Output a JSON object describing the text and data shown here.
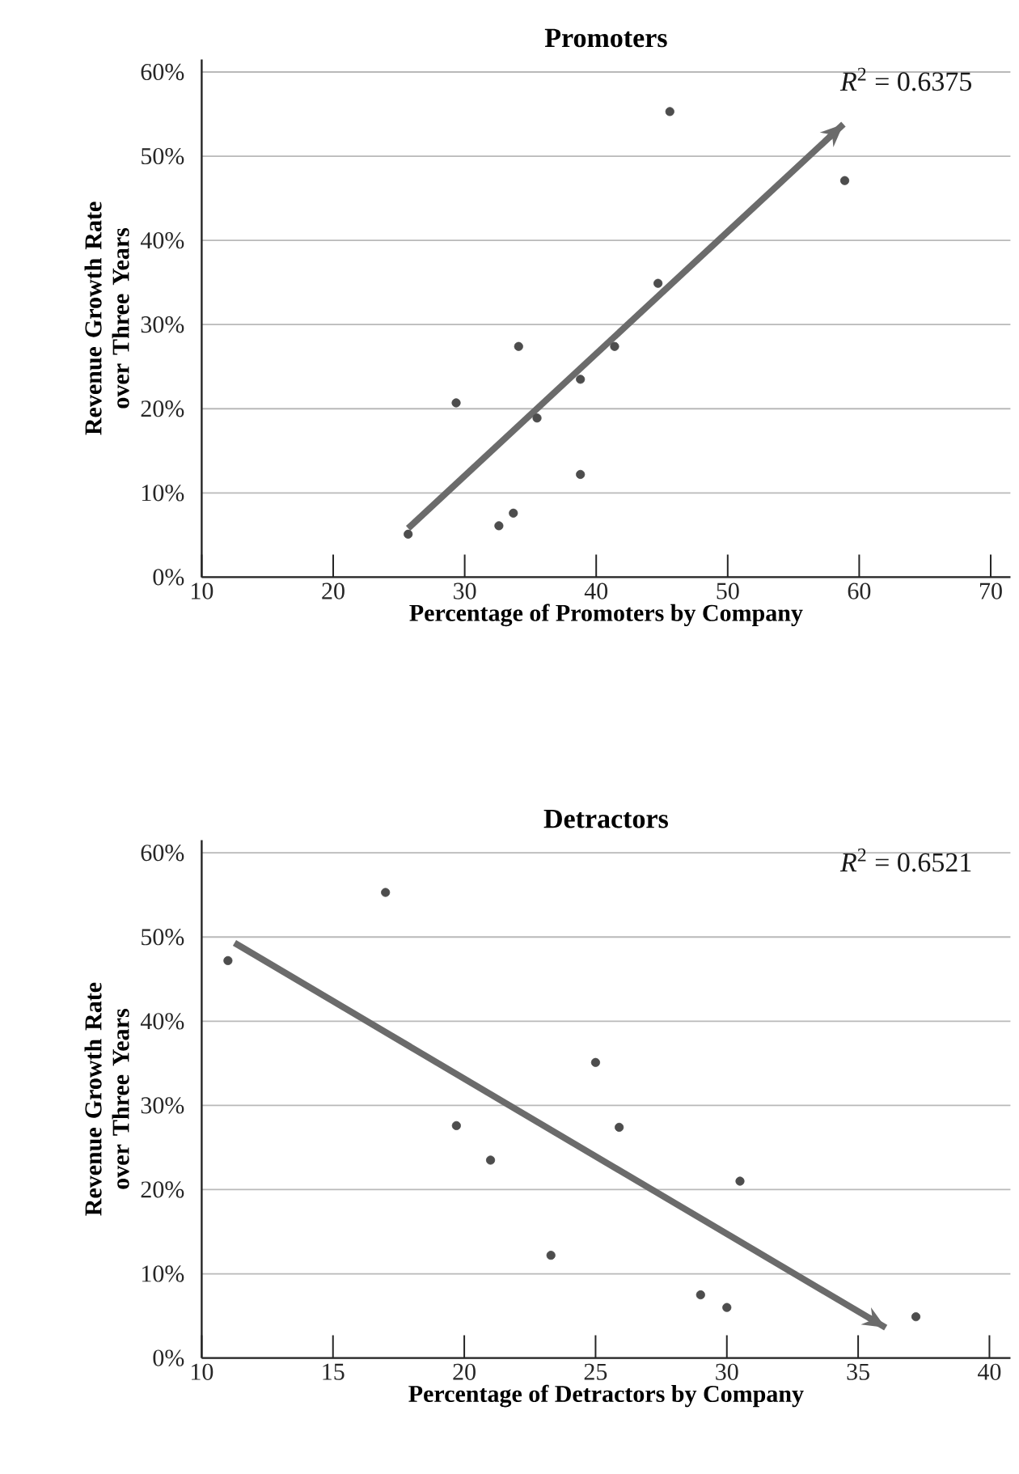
{
  "chart_data": [
    {
      "type": "scatter",
      "title": "Promoters",
      "xlabel": "Percentage of Promoters by Company",
      "ylabel": "Revenue Growth Rate over Three Years",
      "xlim": [
        10,
        71.5
      ],
      "xticks": [
        10,
        20,
        30,
        40,
        50,
        60,
        70
      ],
      "ylim": [
        0,
        61.5
      ],
      "yticks": [
        {
          "value": 0,
          "label": "0%"
        },
        {
          "value": 10,
          "label": "10%"
        },
        {
          "value": 20,
          "label": "20%"
        },
        {
          "value": 30,
          "label": "30%"
        },
        {
          "value": 40,
          "label": "40%"
        },
        {
          "value": 50,
          "label": "50%"
        },
        {
          "value": 60,
          "label": "60%"
        }
      ],
      "grid": "y",
      "annotations": [
        "*R*$^{2}$ = 0.6375"
      ],
      "series": [
        {
          "type": "scatter",
          "marker": "circle",
          "color": "#4d4d4d",
          "x": [
            25.7,
            29.35,
            34.1,
            35.5,
            32.6,
            33.7,
            38.8,
            38.8,
            41.4,
            44.7,
            45.6,
            58.9
          ],
          "values": [
            5.1,
            20.7,
            27.4,
            18.9,
            6.1,
            7.6,
            23.5,
            12.2,
            27.4,
            34.9,
            55.3,
            47.1
          ]
        },
        {
          "type": "line",
          "marker": "none",
          "color": "#6b6b6b",
          "x": [
            25.7,
            58.8
          ],
          "values": [
            5.8,
            53.8
          ]
        }
      ]
    },
    {
      "type": "scatter",
      "title": "Detractors",
      "xlabel": "Percentage of Detractors by Company",
      "ylabel": "Revenue Growth Rate over Three Years",
      "xlim": [
        10,
        40.8
      ],
      "xticks": [
        10,
        15,
        20,
        25,
        30,
        35,
        40
      ],
      "ylim": [
        0,
        61.5
      ],
      "yticks": [
        {
          "value": 0,
          "label": "0%"
        },
        {
          "value": 10,
          "label": "10%"
        },
        {
          "value": 20,
          "label": "20%"
        },
        {
          "value": 30,
          "label": "30%"
        },
        {
          "value": 40,
          "label": "40%"
        },
        {
          "value": 50,
          "label": "50%"
        },
        {
          "value": 60,
          "label": "60%"
        }
      ],
      "grid": "y",
      "annotations": [
        "*R*$^{2}$ = 0.6521"
      ],
      "series": [
        {
          "type": "scatter",
          "marker": "circle",
          "color": "#4d4d4d",
          "x": [
            11.0,
            17.0,
            19.7,
            21.0,
            23.3,
            25.0,
            25.9,
            30.5,
            29.0,
            30.0,
            37.2
          ],
          "values": [
            47.2,
            55.3,
            27.6,
            23.5,
            12.2,
            35.1,
            27.4,
            21.0,
            7.5,
            6.0,
            4.9
          ]
        },
        {
          "type": "line",
          "marker": "none",
          "color": "#6b6b6b",
          "x": [
            11.25,
            36.05
          ],
          "values": [
            49.3,
            3.6
          ]
        }
      ]
    }
  ]
}
